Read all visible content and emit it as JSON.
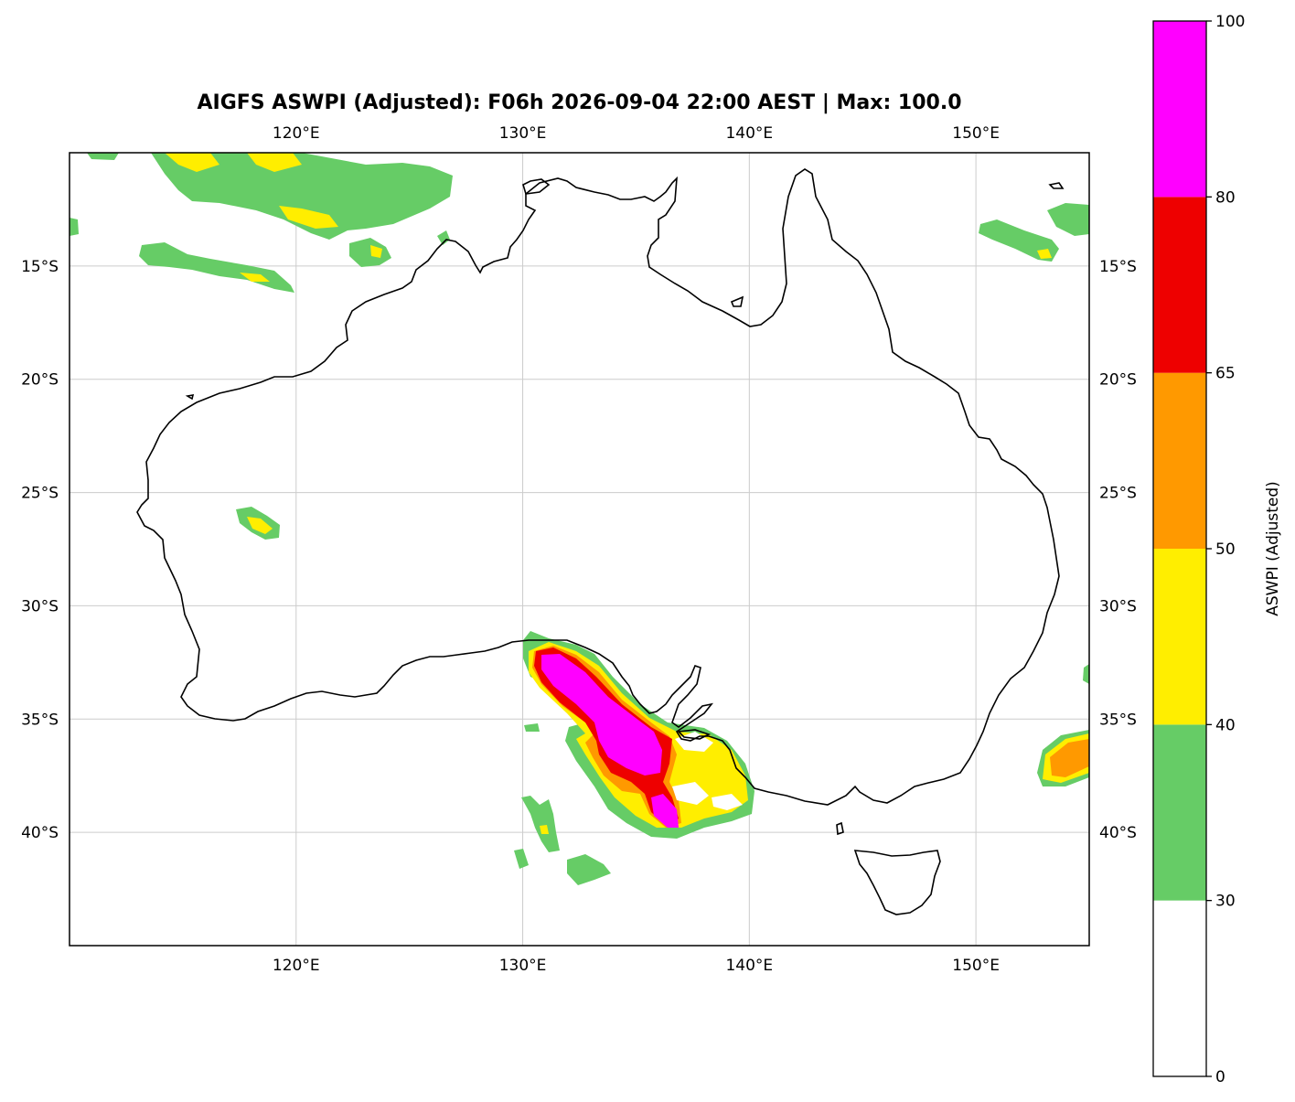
{
  "title": "AIGFS ASWPI (Adjusted): F06h 2026-09-04 22:00 AEST | Max: 100.0",
  "map": {
    "lon_range": [
      110,
      155
    ],
    "lat_range": [
      -45,
      -10
    ],
    "lon_ticks": [
      {
        "value": 120,
        "label": "120°E"
      },
      {
        "value": 130,
        "label": "130°E"
      },
      {
        "value": 140,
        "label": "140°E"
      },
      {
        "value": 150,
        "label": "150°E"
      }
    ],
    "lat_ticks": [
      {
        "value": -15,
        "label": "15°S"
      },
      {
        "value": -20,
        "label": "20°S"
      },
      {
        "value": -25,
        "label": "25°S"
      },
      {
        "value": -30,
        "label": "30°S"
      },
      {
        "value": -35,
        "label": "35°S"
      },
      {
        "value": -40,
        "label": "40°S"
      }
    ],
    "gridlines": true
  },
  "colorbar": {
    "label": "ASWPI (Adjusted)",
    "levels": [
      0,
      30,
      40,
      50,
      65,
      80,
      100
    ],
    "tick_labels": [
      "0",
      "30",
      "40",
      "50",
      "65",
      "80",
      "100"
    ],
    "colors": [
      "#ffffff",
      "#66cc66",
      "#ffee00",
      "#ff9900",
      "#ee0000",
      "#ff00ff"
    ]
  }
}
